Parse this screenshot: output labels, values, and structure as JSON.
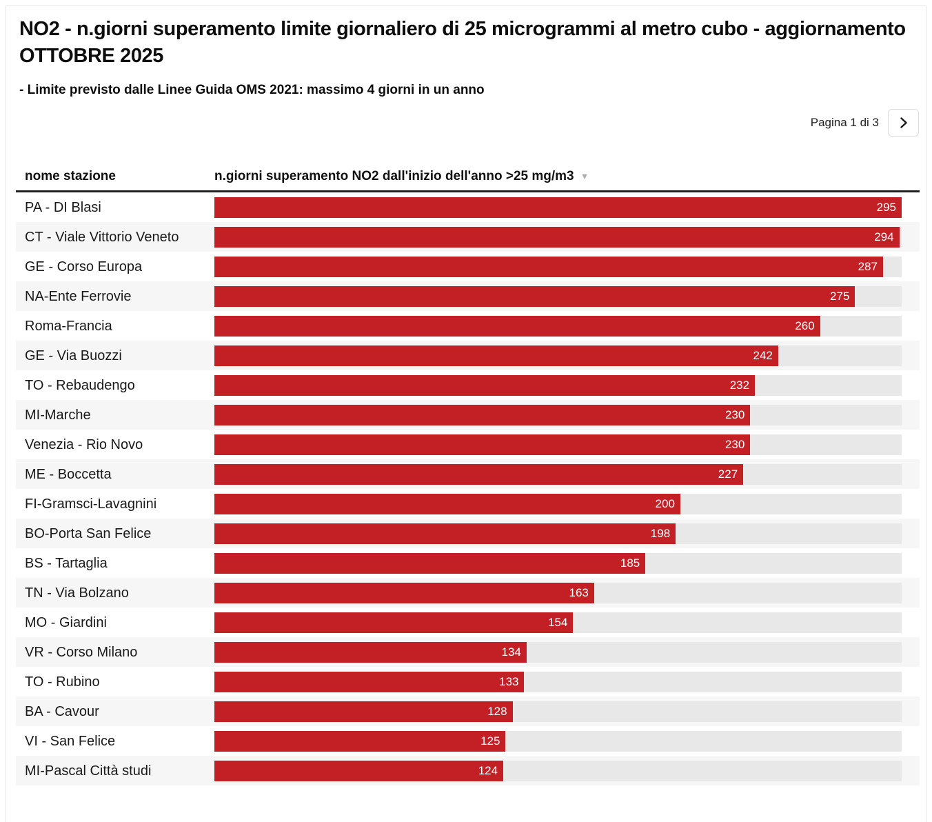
{
  "colors": {
    "bar": "#c32026",
    "track": "#e8e8e8",
    "row_stripe": "#f6f6f6",
    "header_rule": "#1f1f1f",
    "card_border": "#e4e4e4",
    "sort_icon": "#b0b0b0"
  },
  "title": "NO2 - n.giorni superamento limite giornaliero di 25 microgrammi al metro cubo - aggiornamento OTTOBRE 2025",
  "subtitle": "- Limite previsto dalle Linee Guida OMS 2021: massimo 4 giorni in un anno",
  "pagination": {
    "label": "Pagina 1 di 3"
  },
  "icons": {
    "sort_desc": "▼",
    "chevron_right": "›"
  },
  "table": {
    "columns": [
      {
        "label": "nome stazione"
      },
      {
        "label": "n.giorni superamento NO2 dall'inizio dell'anno >25 mg/m3"
      }
    ],
    "max_value": 295,
    "rows": [
      {
        "station": "PA - DI Blasi",
        "value": 295
      },
      {
        "station": "CT - Viale Vittorio Veneto",
        "value": 294
      },
      {
        "station": "GE - Corso Europa",
        "value": 287
      },
      {
        "station": "NA-Ente Ferrovie",
        "value": 275
      },
      {
        "station": "Roma-Francia",
        "value": 260
      },
      {
        "station": "GE - Via Buozzi",
        "value": 242
      },
      {
        "station": "TO - Rebaudengo",
        "value": 232
      },
      {
        "station": "MI-Marche",
        "value": 230
      },
      {
        "station": "Venezia - Rio Novo",
        "value": 230
      },
      {
        "station": "ME - Boccetta",
        "value": 227
      },
      {
        "station": "FI-Gramsci-Lavagnini",
        "value": 200
      },
      {
        "station": "BO-Porta San Felice",
        "value": 198
      },
      {
        "station": "BS - Tartaglia",
        "value": 185
      },
      {
        "station": "TN - Via Bolzano",
        "value": 163
      },
      {
        "station": "MO - Giardini",
        "value": 154
      },
      {
        "station": "VR - Corso Milano",
        "value": 134
      },
      {
        "station": "TO - Rubino",
        "value": 133
      },
      {
        "station": "BA - Cavour",
        "value": 128
      },
      {
        "station": "VI - San Felice",
        "value": 125
      },
      {
        "station": "MI-Pascal Città studi",
        "value": 124
      }
    ]
  },
  "chart_data": {
    "type": "bar",
    "orientation": "horizontal",
    "title": "NO2 - n.giorni superamento limite giornaliero di 25 microgrammi al metro cubo - aggiornamento OTTOBRE 2025",
    "subtitle": "- Limite previsto dalle Linee Guida OMS 2021: massimo 4 giorni in un anno",
    "categories": [
      "PA - DI Blasi",
      "CT - Viale Vittorio Veneto",
      "GE - Corso Europa",
      "NA-Ente Ferrovie",
      "Roma-Francia",
      "GE - Via Buozzi",
      "TO - Rebaudengo",
      "MI-Marche",
      "Venezia - Rio Novo",
      "ME - Boccetta",
      "FI-Gramsci-Lavagnini",
      "BO-Porta San Felice",
      "BS - Tartaglia",
      "TN - Via Bolzano",
      "MO - Giardini",
      "VR - Corso Milano",
      "TO - Rubino",
      "BA - Cavour",
      "VI - San Felice",
      "MI-Pascal Città studi"
    ],
    "values": [
      295,
      294,
      287,
      275,
      260,
      242,
      232,
      230,
      230,
      227,
      200,
      198,
      185,
      163,
      154,
      134,
      133,
      128,
      125,
      124
    ],
    "xlabel": "n.giorni superamento NO2 dall'inizio dell'anno >25 mg/m3",
    "ylabel": "nome stazione",
    "xlim": [
      0,
      295
    ],
    "bar_color": "#c32026",
    "value_labels": "inside-end",
    "grid": false,
    "legend": "none",
    "sort": "descending",
    "page": "Pagina 1 di 3",
    "pages_total": 3
  }
}
